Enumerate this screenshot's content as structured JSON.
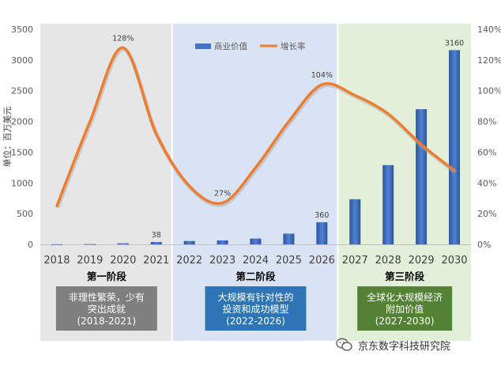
{
  "chart_data": {
    "type": "bar+line",
    "categories": [
      "2018",
      "2019",
      "2020",
      "2021",
      "2022",
      "2023",
      "2024",
      "2025",
      "2026",
      "2027",
      "2028",
      "2029",
      "2030"
    ],
    "series": [
      {
        "name": "商业价值",
        "type": "bar",
        "axis": "left",
        "color": "#4472C4",
        "values": [
          2,
          5,
          18,
          38,
          55,
          65,
          95,
          175,
          360,
          735,
          1290,
          2200,
          3160
        ]
      },
      {
        "name": "增长率",
        "type": "line",
        "axis": "right",
        "color": "#ED7D31",
        "values": [
          25,
          80,
          128,
          72,
          38,
          27,
          50,
          80,
          104,
          97,
          85,
          65,
          48
        ]
      }
    ],
    "data_labels": [
      {
        "series": "增长率",
        "index": 2,
        "text": "128%"
      },
      {
        "series": "商业价值",
        "index": 3,
        "text": "38"
      },
      {
        "series": "增长率",
        "index": 5,
        "text": "27%"
      },
      {
        "series": "增长率",
        "index": 8,
        "text": "104%"
      },
      {
        "series": "商业价值",
        "index": 8,
        "text": "360"
      },
      {
        "series": "商业价值",
        "index": 12,
        "text": "3160"
      }
    ],
    "ylabel": "单位：百万美元",
    "ylim": [
      0,
      3500
    ],
    "yticks": [
      "0",
      "500",
      "1000",
      "1500",
      "2000",
      "2500",
      "3000",
      "3500"
    ],
    "y2lim": [
      0,
      140
    ],
    "y2ticks": [
      "0%",
      "20%",
      "40%",
      "60%",
      "80%",
      "100%",
      "120%",
      "140%"
    ],
    "legend_position": "top-center",
    "phases": [
      {
        "label": "第一阶段",
        "desc_lines": [
          "非理性繁荣，少有",
          "突出成就",
          "(2018-2021)"
        ],
        "bg": "#E7E6E6",
        "box_color": "#7F7F7F"
      },
      {
        "label": "第二阶段",
        "desc_lines": [
          "大规模有针对性的",
          "投资和成功模型",
          "(2022-2026)"
        ],
        "bg": "#DAE3F3",
        "box_color": "#2E75B6"
      },
      {
        "label": "第三阶段",
        "desc_lines": [
          "全球化大规模经济",
          "附加价值",
          "(2027-2030)"
        ],
        "bg": "#E2F0D9",
        "box_color": "#548235"
      }
    ]
  },
  "watermark": {
    "text": "京东数字科技研究院",
    "icon": "wechat-icon"
  }
}
